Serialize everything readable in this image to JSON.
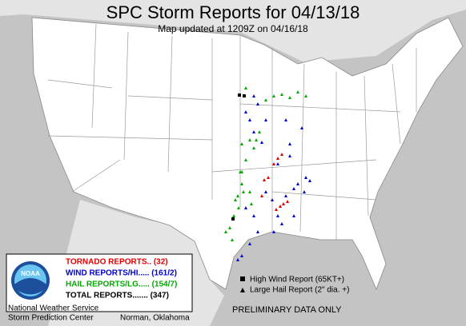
{
  "header": {
    "title": "SPC Storm Reports for 04/13/18",
    "subtitle": "Map updated at 1209Z on 04/16/18"
  },
  "legend": {
    "logo": "NOAA",
    "entries": [
      {
        "label": "TORNADO REPORTS.. (32)",
        "color": "#e00000"
      },
      {
        "label": "WIND REPORTS/HI..... (161/2)",
        "color": "#0000cc"
      },
      {
        "label": "HAIL REPORTS/LG..... (154/7)",
        "color": "#00aa00"
      },
      {
        "label": "TOTAL REPORTS....... (347)",
        "color": "#000000"
      }
    ],
    "agency": "National Weather Service",
    "center": "Storm Prediction Center",
    "location": "Norman, Oklahoma"
  },
  "key": {
    "high_wind": "High Wind Report (65KT+)",
    "large_hail": "Large Hail Report (2\" dia. +)",
    "notice": "PRELIMINARY DATA ONLY"
  }
}
